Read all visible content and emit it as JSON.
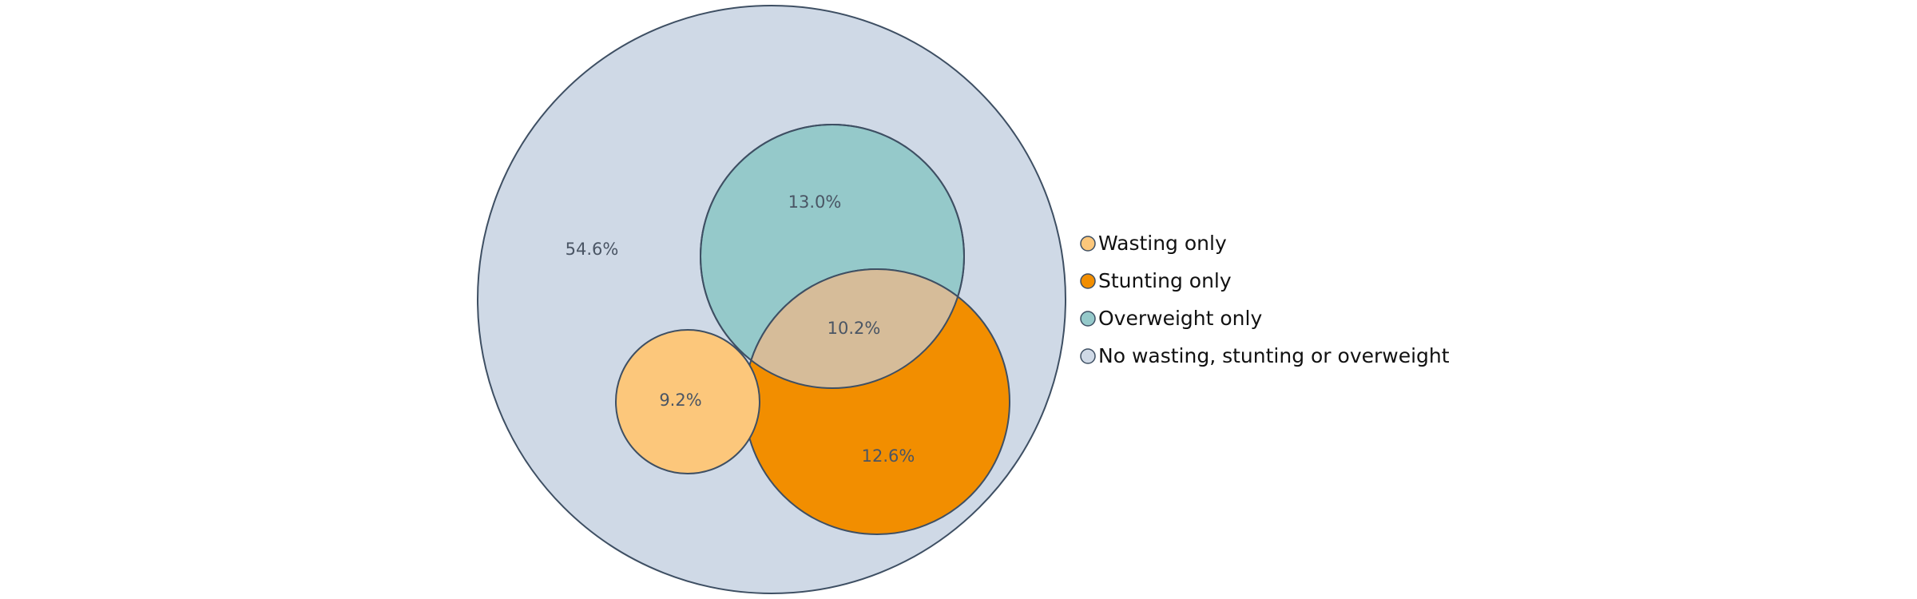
{
  "chart_data": {
    "type": "venn",
    "title": "",
    "sets": [
      {
        "id": "none",
        "name": "No wasting, stunting or overweight",
        "region_value": 54.6,
        "color": "#cfd9e6"
      },
      {
        "id": "overweight",
        "name": "Overweight only",
        "region_value": 13.0,
        "color": "#95c9ca"
      },
      {
        "id": "stunting",
        "name": "Stunting only",
        "region_value": 12.6,
        "color": "#f28e00"
      },
      {
        "id": "wasting",
        "name": "Wasting only",
        "region_value": 9.2,
        "color": "#fcc77b"
      }
    ],
    "overlaps": [
      {
        "sets": [
          "overweight",
          "stunting"
        ],
        "region_value": 10.2,
        "color": "#d6bc99"
      }
    ],
    "labels": {
      "none": "54.6%",
      "overweight": "13.0%",
      "stunting": "12.6%",
      "wasting": "9.2%",
      "overweight_stunting": "10.2%"
    },
    "legend": {
      "placement": "right",
      "entries": [
        {
          "label": "Wasting only",
          "color": "#fcc77b"
        },
        {
          "label": "Stunting only",
          "color": "#f28e00"
        },
        {
          "label": "Overweight only",
          "color": "#95c9ca"
        },
        {
          "label": "No wasting, stunting or overweight",
          "color": "#cfd9e6"
        }
      ]
    },
    "stroke_color": "#3e4f63"
  }
}
